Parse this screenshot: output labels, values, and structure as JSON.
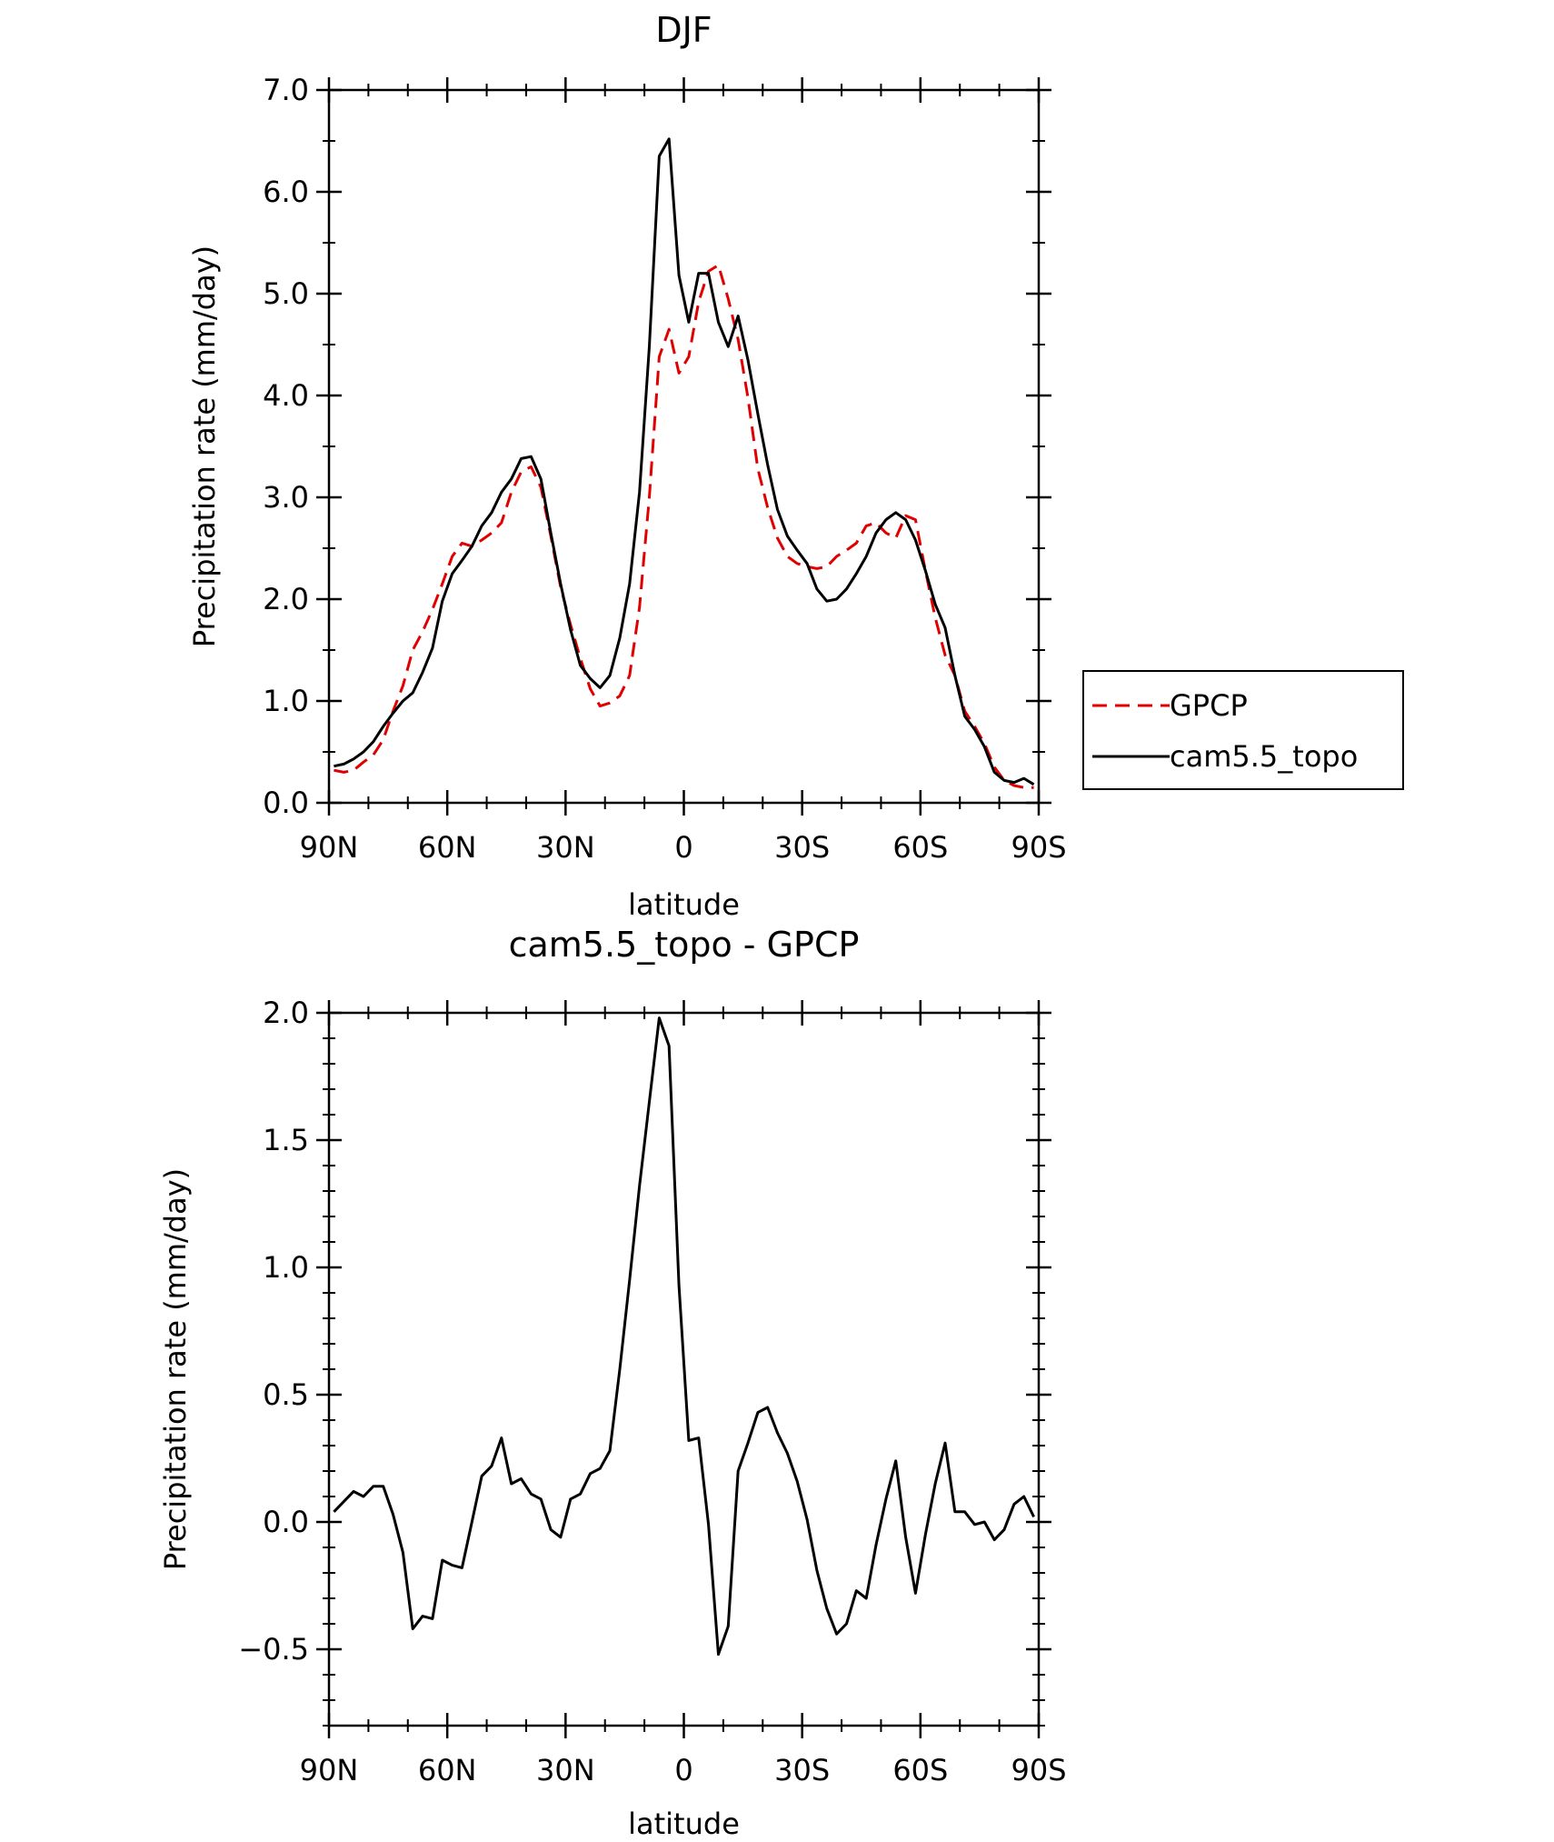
{
  "chart_data": [
    {
      "type": "line",
      "title": "DJF",
      "xlabel": "latitude",
      "ylabel": "Precipitation rate (mm/day)",
      "xlim": [
        90,
        -90
      ],
      "ylim": [
        0,
        7
      ],
      "yticks": [
        0,
        1,
        2,
        3,
        4,
        5,
        6,
        7
      ],
      "ytick_labels": [
        "0.0",
        "1.0",
        "2.0",
        "3.0",
        "4.0",
        "5.0",
        "6.0",
        "7.0"
      ],
      "xticks": [
        90,
        60,
        30,
        0,
        -30,
        -60,
        -90
      ],
      "xtick_labels": [
        "90N",
        "60N",
        "30N",
        "0",
        "30S",
        "60S",
        "90S"
      ],
      "grid": false,
      "legend": {
        "placement": "right",
        "entries": [
          "GPCP",
          "cam5.5_topo"
        ]
      },
      "series": [
        {
          "name": "GPCP",
          "color": "#e00000",
          "dash": "dashed",
          "x": [
            88.75,
            86.25,
            83.75,
            81.25,
            78.75,
            76.25,
            73.75,
            71.25,
            68.75,
            66.25,
            63.75,
            61.25,
            58.75,
            56.25,
            53.75,
            51.25,
            48.75,
            46.25,
            43.75,
            41.25,
            38.75,
            36.25,
            33.75,
            31.25,
            28.75,
            26.25,
            23.75,
            21.25,
            18.75,
            16.25,
            13.75,
            11.25,
            8.75,
            6.25,
            3.75,
            1.25,
            -1.25,
            -3.75,
            -6.25,
            -8.75,
            -11.25,
            -13.75,
            -16.25,
            -18.75,
            -21.25,
            -23.75,
            -26.25,
            -28.75,
            -31.25,
            -33.75,
            -36.25,
            -38.75,
            -41.25,
            -43.75,
            -46.25,
            -48.75,
            -51.25,
            -53.75,
            -56.25,
            -58.75,
            -61.25,
            -63.75,
            -66.25,
            -68.75,
            -71.25,
            -73.75,
            -76.25,
            -78.75,
            -81.25,
            -83.75,
            -86.25,
            -88.75
          ],
          "y": [
            0.32,
            0.3,
            0.32,
            0.4,
            0.47,
            0.62,
            0.9,
            1.15,
            1.5,
            1.68,
            1.9,
            2.15,
            2.42,
            2.55,
            2.52,
            2.58,
            2.65,
            2.75,
            3.05,
            3.25,
            3.3,
            3.1,
            2.62,
            2.12,
            1.75,
            1.42,
            1.12,
            0.95,
            0.98,
            1.05,
            1.25,
            1.92,
            3.0,
            4.38,
            4.65,
            4.22,
            4.38,
            4.92,
            5.22,
            5.28,
            4.95,
            4.55,
            3.98,
            3.28,
            2.9,
            2.6,
            2.42,
            2.35,
            2.32,
            2.3,
            2.32,
            2.42,
            2.48,
            2.55,
            2.72,
            2.75,
            2.65,
            2.6,
            2.82,
            2.78,
            2.28,
            1.82,
            1.45,
            1.25,
            0.9,
            0.75,
            0.58,
            0.35,
            0.22,
            0.17,
            0.15,
            0.15
          ]
        },
        {
          "name": "cam5.5_topo",
          "color": "#000000",
          "dash": "solid",
          "x": [
            88.75,
            86.25,
            83.75,
            81.25,
            78.75,
            76.25,
            73.75,
            71.25,
            68.75,
            66.25,
            63.75,
            61.25,
            58.75,
            56.25,
            53.75,
            51.25,
            48.75,
            46.25,
            43.75,
            41.25,
            38.75,
            36.25,
            33.75,
            31.25,
            28.75,
            26.25,
            23.75,
            21.25,
            18.75,
            16.25,
            13.75,
            11.25,
            8.75,
            6.25,
            3.75,
            1.25,
            -1.25,
            -3.75,
            -6.25,
            -8.75,
            -11.25,
            -13.75,
            -16.25,
            -18.75,
            -21.25,
            -23.75,
            -26.25,
            -28.75,
            -31.25,
            -33.75,
            -36.25,
            -38.75,
            -41.25,
            -43.75,
            -46.25,
            -48.75,
            -51.25,
            -53.75,
            -56.25,
            -58.75,
            -61.25,
            -63.75,
            -66.25,
            -68.75,
            -71.25,
            -73.75,
            -76.25,
            -78.75,
            -81.25,
            -83.75,
            -86.25,
            -88.75
          ],
          "y": [
            0.36,
            0.38,
            0.43,
            0.5,
            0.6,
            0.75,
            0.88,
            1.0,
            1.08,
            1.28,
            1.52,
            1.98,
            2.25,
            2.38,
            2.52,
            2.72,
            2.85,
            3.05,
            3.18,
            3.38,
            3.4,
            3.18,
            2.65,
            2.15,
            1.7,
            1.35,
            1.22,
            1.13,
            1.25,
            1.62,
            2.15,
            3.05,
            4.48,
            6.35,
            6.52,
            5.18,
            4.72,
            5.2,
            5.2,
            4.72,
            4.48,
            4.78,
            4.35,
            3.82,
            3.32,
            2.88,
            2.62,
            2.48,
            2.35,
            2.1,
            1.98,
            2.0,
            2.1,
            2.25,
            2.42,
            2.65,
            2.78,
            2.85,
            2.78,
            2.58,
            2.28,
            1.95,
            1.72,
            1.25,
            0.85,
            0.72,
            0.55,
            0.3,
            0.22,
            0.2,
            0.24,
            0.18
          ]
        }
      ]
    },
    {
      "type": "line",
      "title": "cam5.5_topo - GPCP",
      "xlabel": "latitude",
      "ylabel": "Precipitation rate (mm/day)",
      "xlim": [
        90,
        -90
      ],
      "ylim": [
        -0.8,
        2.0
      ],
      "yticks": [
        -0.5,
        0,
        0.5,
        1.0,
        1.5,
        2.0
      ],
      "ytick_labels": [
        "-0.5",
        "0.0",
        "0.5",
        "1.0",
        "1.5",
        "2.0"
      ],
      "xticks": [
        90,
        60,
        30,
        0,
        -30,
        -60,
        -90
      ],
      "xtick_labels": [
        "90N",
        "60N",
        "30N",
        "0",
        "30S",
        "60S",
        "90S"
      ],
      "grid": false,
      "series": [
        {
          "color": "#000000",
          "dash": "solid",
          "x": [
            88.75,
            86.25,
            83.75,
            81.25,
            78.75,
            76.25,
            73.75,
            71.25,
            68.75,
            66.25,
            63.75,
            61.25,
            58.75,
            56.25,
            53.75,
            51.25,
            48.75,
            46.25,
            43.75,
            41.25,
            38.75,
            36.25,
            33.75,
            31.25,
            28.75,
            26.25,
            23.75,
            21.25,
            18.75,
            16.25,
            13.75,
            11.25,
            8.75,
            6.25,
            3.75,
            1.25,
            -1.25,
            -3.75,
            -6.25,
            -8.75,
            -11.25,
            -13.75,
            -16.25,
            -18.75,
            -21.25,
            -23.75,
            -26.25,
            -28.75,
            -31.25,
            -33.75,
            -36.25,
            -38.75,
            -41.25,
            -43.75,
            -46.25,
            -48.75,
            -51.25,
            -53.75,
            -56.25,
            -58.75,
            -61.25,
            -63.75,
            -66.25,
            -68.75,
            -71.25,
            -73.75,
            -76.25,
            -78.75,
            -81.25,
            -83.75,
            -86.25,
            -88.75
          ],
          "y": [
            0.04,
            0.08,
            0.12,
            0.1,
            0.14,
            0.14,
            0.03,
            -0.12,
            -0.42,
            -0.37,
            -0.38,
            -0.15,
            -0.17,
            -0.18,
            0.0,
            0.18,
            0.22,
            0.33,
            0.15,
            0.17,
            0.11,
            0.09,
            -0.03,
            -0.06,
            0.09,
            0.11,
            0.19,
            0.21,
            0.28,
            0.6,
            0.95,
            1.32,
            1.65,
            1.98,
            1.87,
            0.93,
            0.32,
            0.33,
            -0.01,
            -0.52,
            -0.41,
            0.2,
            0.31,
            0.43,
            0.45,
            0.35,
            0.27,
            0.16,
            0.01,
            -0.19,
            -0.34,
            -0.44,
            -0.4,
            -0.27,
            -0.3,
            -0.09,
            0.09,
            0.24,
            -0.06,
            -0.28,
            -0.05,
            0.15,
            0.31,
            0.04,
            0.04,
            -0.01,
            0.0,
            -0.07,
            -0.03,
            0.07,
            0.1,
            0.02
          ]
        }
      ]
    }
  ]
}
